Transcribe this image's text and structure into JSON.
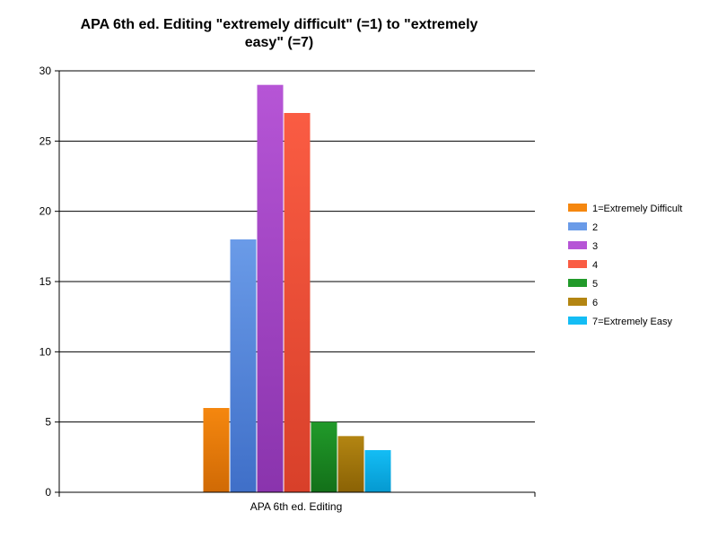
{
  "chart_data": {
    "type": "bar",
    "title_lines": [
      "APA 6th ed. Editing \"extremely difficult\" (=1) to \"extremely",
      "easy\" (=7)"
    ],
    "categories": [
      "APA 6th ed. Editing"
    ],
    "xlabel": "",
    "ylabel": "",
    "ylim": [
      0,
      30
    ],
    "yticks": [
      0,
      5,
      10,
      15,
      20,
      25,
      30
    ],
    "grid": true,
    "legend_position": "right",
    "series": [
      {
        "name": "1=Extremely Difficult",
        "values": [
          6
        ],
        "color": "#f5870f",
        "color_dark": "#d06a05"
      },
      {
        "name": "2",
        "values": [
          18
        ],
        "color": "#6a9be8",
        "color_dark": "#3f6fc8"
      },
      {
        "name": "3",
        "values": [
          29
        ],
        "color": "#b655d6",
        "color_dark": "#8a34ad"
      },
      {
        "name": "4",
        "values": [
          27
        ],
        "color": "#fa5c43",
        "color_dark": "#d8402a"
      },
      {
        "name": "5",
        "values": [
          5
        ],
        "color": "#219a2a",
        "color_dark": "#137019"
      },
      {
        "name": "6",
        "values": [
          4
        ],
        "color": "#b38512",
        "color_dark": "#8a6205"
      },
      {
        "name": "7=Extremely Easy",
        "values": [
          3
        ],
        "color": "#14bdf5",
        "color_dark": "#0599d0"
      }
    ]
  }
}
